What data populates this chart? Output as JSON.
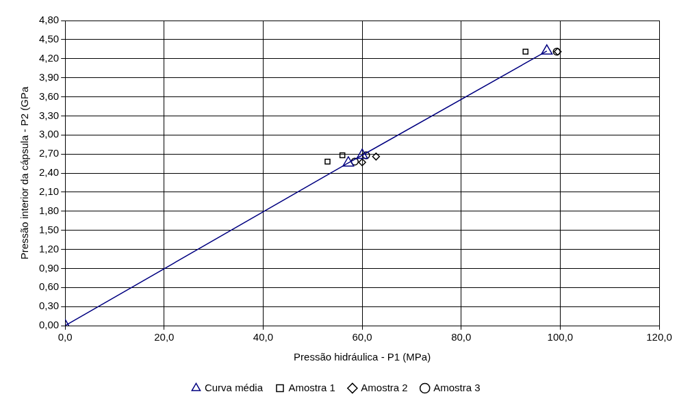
{
  "chart_data": {
    "type": "scatter",
    "xlabel": "Pressão hidráulica - P1 (MPa)",
    "ylabel": "Pressão interior da cápsula - P2 (GPa",
    "xlim": [
      0,
      120
    ],
    "xticks": [
      {
        "value": 0,
        "label": "0,0"
      },
      {
        "value": 20,
        "label": "20,0"
      },
      {
        "value": 40,
        "label": "40,0"
      },
      {
        "value": 60,
        "label": "60,0"
      },
      {
        "value": 80,
        "label": "80,0"
      },
      {
        "value": 100,
        "label": "100,0"
      },
      {
        "value": 120,
        "label": "120,0"
      }
    ],
    "ylim": [
      0,
      4.8
    ],
    "yticks": [
      {
        "value": 0,
        "label": "0,00"
      },
      {
        "value": 0.3,
        "label": "0,30"
      },
      {
        "value": 0.6,
        "label": "0,60"
      },
      {
        "value": 0.9,
        "label": "0,90"
      },
      {
        "value": 1.2,
        "label": "1,20"
      },
      {
        "value": 1.5,
        "label": "1,50"
      },
      {
        "value": 1.8,
        "label": "1,80"
      },
      {
        "value": 2.1,
        "label": "2,10"
      },
      {
        "value": 2.4,
        "label": "2,40"
      },
      {
        "value": 2.7,
        "label": "2,70"
      },
      {
        "value": 3.0,
        "label": "3,00"
      },
      {
        "value": 3.3,
        "label": "3,30"
      },
      {
        "value": 3.6,
        "label": "3,60"
      },
      {
        "value": 3.9,
        "label": "3,90"
      },
      {
        "value": 4.2,
        "label": "4,20"
      },
      {
        "value": 4.5,
        "label": "4,50"
      },
      {
        "value": 4.8,
        "label": "4,80"
      }
    ],
    "grid": true,
    "legend": "bottom",
    "series": [
      {
        "name": "Curva média",
        "type": "line",
        "marker": "triangle",
        "color": "#000080",
        "x": [
          0,
          57.2,
          60.0,
          97.3
        ],
        "values": [
          0,
          2.56,
          2.68,
          4.32
        ]
      },
      {
        "name": "Amostra 1",
        "marker": "square",
        "color": "#000000",
        "x": [
          53.0,
          56.0,
          93.0
        ],
        "values": [
          2.58,
          2.68,
          4.31
        ]
      },
      {
        "name": "Amostra 2",
        "marker": "diamond",
        "color": "#000000",
        "x": [
          60.0,
          62.8,
          99.5
        ],
        "values": [
          2.57,
          2.66,
          4.31
        ]
      },
      {
        "name": "Amostra 3",
        "marker": "circle",
        "color": "#000000",
        "x": [
          58.5,
          60.8,
          99.3
        ],
        "values": [
          2.58,
          2.68,
          4.31
        ]
      }
    ]
  }
}
